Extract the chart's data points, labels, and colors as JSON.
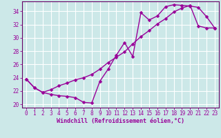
{
  "xlabel": "Windchill (Refroidissement éolien,°C)",
  "line_color": "#990099",
  "bg_color": "#cce8e8",
  "grid_color": "#ffffff",
  "axis_color": "#660066",
  "x_line1": [
    0,
    1,
    2,
    3,
    4,
    5,
    6,
    7,
    8,
    9,
    10,
    11,
    12,
    13,
    14,
    15,
    16,
    17,
    18,
    19,
    20,
    21,
    22,
    23
  ],
  "y_line1": [
    23.8,
    22.5,
    21.8,
    21.5,
    21.3,
    21.2,
    21.0,
    20.3,
    20.2,
    23.5,
    25.3,
    27.4,
    29.3,
    27.2,
    33.8,
    32.7,
    33.3,
    34.7,
    35.0,
    34.9,
    34.8,
    34.6,
    33.2,
    31.5
  ],
  "x_line2": [
    0,
    1,
    2,
    3,
    4,
    5,
    6,
    7,
    8,
    9,
    10,
    11,
    12,
    13,
    14,
    15,
    16,
    17,
    18,
    19,
    20,
    21,
    22,
    23
  ],
  "y_line2": [
    23.8,
    22.5,
    21.8,
    22.2,
    22.8,
    23.2,
    23.7,
    24.0,
    24.5,
    25.3,
    26.3,
    27.1,
    27.9,
    29.1,
    30.2,
    31.1,
    32.1,
    32.9,
    33.9,
    34.5,
    34.9,
    31.8,
    31.5,
    31.5
  ],
  "xlim": [
    -0.5,
    23.5
  ],
  "ylim": [
    19.5,
    35.5
  ],
  "yticks": [
    20,
    22,
    24,
    26,
    28,
    30,
    32,
    34
  ],
  "xticks": [
    0,
    1,
    2,
    3,
    4,
    5,
    6,
    7,
    8,
    9,
    10,
    11,
    12,
    13,
    14,
    15,
    16,
    17,
    18,
    19,
    20,
    21,
    22,
    23
  ],
  "marker": "D",
  "markersize": 2.5,
  "linewidth": 1.0,
  "tick_fontsize": 5.5,
  "label_fontsize": 6.0
}
